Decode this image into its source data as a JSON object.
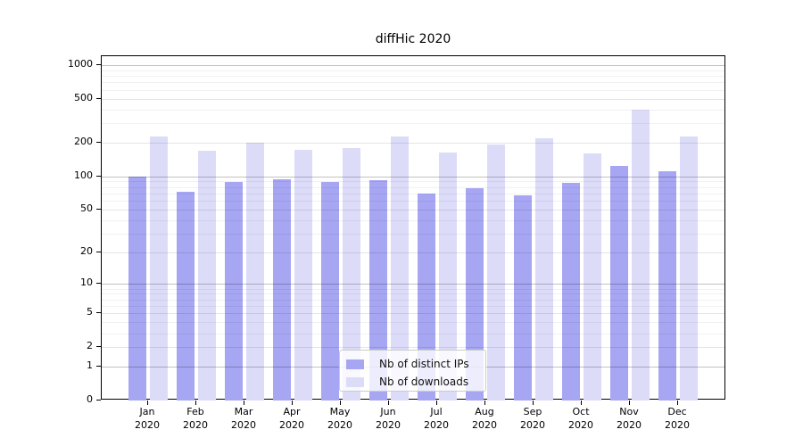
{
  "title": "diffHic 2020",
  "legend": {
    "items": [
      {
        "label": "Nb of distinct IPs",
        "color": "#a6a6f3"
      },
      {
        "label": "Nb of downloads",
        "color": "#dcdcf9"
      }
    ]
  },
  "colors": {
    "background": "#ffffff",
    "bar_distinct_ips": "#a6a6f3",
    "bar_downloads": "#dcdcf9",
    "spine": "#000000",
    "grid_decade": "rgba(0,0,0,0.24)",
    "grid_labeled": "rgba(0,0,0,0.10)",
    "grid_minor": "rgba(0,0,0,0.055)",
    "legend_border": "#cccccc"
  },
  "chart_data": {
    "type": "bar",
    "title": "diffHic 2020",
    "categories": [
      "Jan 2020",
      "Feb 2020",
      "Mar 2020",
      "Apr 2020",
      "May 2020",
      "Jun 2020",
      "Jul 2020",
      "Aug 2020",
      "Sep 2020",
      "Oct 2020",
      "Nov 2020",
      "Dec 2020"
    ],
    "x_months": [
      "Jan",
      "Feb",
      "Mar",
      "Apr",
      "May",
      "Jun",
      "Jul",
      "Aug",
      "Sep",
      "Oct",
      "Nov",
      "Dec"
    ],
    "x_year": "2020",
    "series": [
      {
        "name": "Nb of distinct IPs",
        "color": "#a6a6f3",
        "values": [
          100,
          72,
          89,
          94,
          89,
          92,
          70,
          78,
          67,
          88,
          125,
          112
        ]
      },
      {
        "name": "Nb of downloads",
        "color": "#dcdcf9",
        "values": [
          228,
          170,
          202,
          172,
          180,
          228,
          164,
          194,
          220,
          161,
          400,
          227
        ]
      }
    ],
    "yscale": "log1p",
    "y_ticks": [
      0,
      1,
      2,
      5,
      10,
      20,
      50,
      100,
      200,
      500,
      1000
    ],
    "y_minor_ticks": [
      3,
      4,
      6,
      7,
      8,
      9,
      30,
      40,
      60,
      70,
      80,
      90,
      300,
      400,
      600,
      700,
      800,
      900
    ],
    "y_decades": [
      1,
      10,
      100,
      1000
    ],
    "ylim": [
      0,
      1250
    ],
    "grid": true,
    "grid_above_bars": true,
    "legend_position": "lower center"
  }
}
